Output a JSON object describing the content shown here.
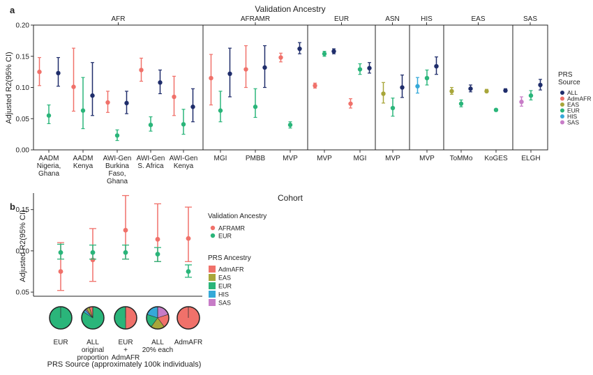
{
  "colors": {
    "ALL": "#1f2d6b",
    "AdmAFR": "#f0716a",
    "EAS": "#a8a63a",
    "EUR": "#2ab57a",
    "HIS": "#35a9d8",
    "SAS": "#c77cc7"
  },
  "chart_data": [
    {
      "type": "scatter",
      "panel_label": "a",
      "title": "Validation Ancestry",
      "ylabel": "Adjusted R2(95% CI)",
      "xlabel": "Cohort",
      "ylim": [
        0,
        0.2
      ],
      "yticks": [
        "0.00",
        "0.05",
        "0.10",
        "0.15",
        "0.20"
      ],
      "ytick_values": [
        0,
        0.05,
        0.1,
        0.15,
        0.2
      ],
      "legend": {
        "title_lines": [
          "PRS",
          "Source"
        ],
        "entries": [
          "ALL",
          "AdmAFR",
          "EAS",
          "EUR",
          "HIS",
          "SAS"
        ]
      },
      "groups": [
        {
          "name": "AFR",
          "cohorts": [
            {
              "label_lines": [
                "AADM",
                "Nigeria,",
                "Ghana"
              ],
              "points": [
                {
                  "src": "AdmAFR",
                  "y": 0.125,
                  "lo": 0.103,
                  "hi": 0.148
                },
                {
                  "src": "EUR",
                  "y": 0.055,
                  "lo": 0.042,
                  "hi": 0.072
                },
                {
                  "src": "ALL",
                  "y": 0.123,
                  "lo": 0.102,
                  "hi": 0.148
                }
              ]
            },
            {
              "label_lines": [
                "AADM",
                "Kenya"
              ],
              "points": [
                {
                  "src": "AdmAFR",
                  "y": 0.101,
                  "lo": 0.062,
                  "hi": 0.163
                },
                {
                  "src": "EUR",
                  "y": 0.063,
                  "lo": 0.034,
                  "hi": 0.116
                },
                {
                  "src": "ALL",
                  "y": 0.087,
                  "lo": 0.055,
                  "hi": 0.14
                }
              ]
            },
            {
              "label_lines": [
                "AWI-Gen",
                "Burkina",
                "Faso,",
                "Ghana"
              ],
              "points": [
                {
                  "src": "AdmAFR",
                  "y": 0.076,
                  "lo": 0.06,
                  "hi": 0.094
                },
                {
                  "src": "EUR",
                  "y": 0.023,
                  "lo": 0.015,
                  "hi": 0.032
                },
                {
                  "src": "ALL",
                  "y": 0.075,
                  "lo": 0.058,
                  "hi": 0.094
                }
              ]
            },
            {
              "label_lines": [
                "AWI-Gen",
                "S. Africa"
              ],
              "points": [
                {
                  "src": "AdmAFR",
                  "y": 0.128,
                  "lo": 0.11,
                  "hi": 0.147
                },
                {
                  "src": "EUR",
                  "y": 0.04,
                  "lo": 0.03,
                  "hi": 0.053
                },
                {
                  "src": "ALL",
                  "y": 0.108,
                  "lo": 0.09,
                  "hi": 0.128
                }
              ]
            },
            {
              "label_lines": [
                "AWI-Gen",
                "Kenya"
              ],
              "points": [
                {
                  "src": "AdmAFR",
                  "y": 0.085,
                  "lo": 0.055,
                  "hi": 0.118
                },
                {
                  "src": "EUR",
                  "y": 0.041,
                  "lo": 0.025,
                  "hi": 0.065
                },
                {
                  "src": "ALL",
                  "y": 0.069,
                  "lo": 0.045,
                  "hi": 0.098
                }
              ]
            }
          ]
        },
        {
          "name": "AFRAMR",
          "cohorts": [
            {
              "label_lines": [
                "MGI"
              ],
              "points": [
                {
                  "src": "AdmAFR",
                  "y": 0.115,
                  "lo": 0.072,
                  "hi": 0.153
                },
                {
                  "src": "EUR",
                  "y": 0.063,
                  "lo": 0.045,
                  "hi": 0.094
                },
                {
                  "src": "ALL",
                  "y": 0.122,
                  "lo": 0.085,
                  "hi": 0.163
                }
              ]
            },
            {
              "label_lines": [
                "PMBB"
              ],
              "points": [
                {
                  "src": "AdmAFR",
                  "y": 0.129,
                  "lo": 0.1,
                  "hi": 0.167
                },
                {
                  "src": "EUR",
                  "y": 0.069,
                  "lo": 0.052,
                  "hi": 0.098
                },
                {
                  "src": "ALL",
                  "y": 0.132,
                  "lo": 0.1,
                  "hi": 0.167
                }
              ]
            },
            {
              "label_lines": [
                "MVP"
              ],
              "points": [
                {
                  "src": "AdmAFR",
                  "y": 0.148,
                  "lo": 0.141,
                  "hi": 0.155
                },
                {
                  "src": "EUR",
                  "y": 0.04,
                  "lo": 0.035,
                  "hi": 0.045
                },
                {
                  "src": "ALL",
                  "y": 0.162,
                  "lo": 0.154,
                  "hi": 0.172
                }
              ]
            }
          ]
        },
        {
          "name": "EUR",
          "cohorts": [
            {
              "label_lines": [
                "MVP"
              ],
              "points": [
                {
                  "src": "AdmAFR",
                  "y": 0.103,
                  "lo": 0.099,
                  "hi": 0.107
                },
                {
                  "src": "EUR",
                  "y": 0.154,
                  "lo": 0.15,
                  "hi": 0.158
                },
                {
                  "src": "ALL",
                  "y": 0.158,
                  "lo": 0.154,
                  "hi": 0.162
                }
              ]
            },
            {
              "label_lines": [
                "MGI"
              ],
              "points": [
                {
                  "src": "AdmAFR",
                  "y": 0.074,
                  "lo": 0.067,
                  "hi": 0.082
                },
                {
                  "src": "EUR",
                  "y": 0.129,
                  "lo": 0.121,
                  "hi": 0.138
                },
                {
                  "src": "ALL",
                  "y": 0.131,
                  "lo": 0.123,
                  "hi": 0.14
                }
              ]
            }
          ]
        },
        {
          "name": "ASN",
          "cohorts": [
            {
              "label_lines": [
                "MVP"
              ],
              "points": [
                {
                  "src": "EAS",
                  "y": 0.09,
                  "lo": 0.075,
                  "hi": 0.108
                },
                {
                  "src": "EUR",
                  "y": 0.067,
                  "lo": 0.054,
                  "hi": 0.083
                },
                {
                  "src": "ALL",
                  "y": 0.1,
                  "lo": 0.084,
                  "hi": 0.12
                }
              ]
            }
          ]
        },
        {
          "name": "HIS",
          "cohorts": [
            {
              "label_lines": [
                "MVP"
              ],
              "points": [
                {
                  "src": "HIS",
                  "y": 0.102,
                  "lo": 0.091,
                  "hi": 0.116
                },
                {
                  "src": "EUR",
                  "y": 0.115,
                  "lo": 0.104,
                  "hi": 0.128
                },
                {
                  "src": "ALL",
                  "y": 0.134,
                  "lo": 0.121,
                  "hi": 0.149
                }
              ]
            }
          ]
        },
        {
          "name": "EAS",
          "cohorts": [
            {
              "label_lines": [
                "ToMMo"
              ],
              "points": [
                {
                  "src": "EAS",
                  "y": 0.094,
                  "lo": 0.089,
                  "hi": 0.1
                },
                {
                  "src": "EUR",
                  "y": 0.074,
                  "lo": 0.069,
                  "hi": 0.08
                },
                {
                  "src": "ALL",
                  "y": 0.098,
                  "lo": 0.093,
                  "hi": 0.104
                }
              ]
            },
            {
              "label_lines": [
                "KoGES"
              ],
              "points": [
                {
                  "src": "EAS",
                  "y": 0.094,
                  "lo": 0.092,
                  "hi": 0.097
                },
                {
                  "src": "EUR",
                  "y": 0.064,
                  "lo": 0.062,
                  "hi": 0.066
                },
                {
                  "src": "ALL",
                  "y": 0.095,
                  "lo": 0.093,
                  "hi": 0.098
                }
              ]
            }
          ]
        },
        {
          "name": "SAS",
          "cohorts": [
            {
              "label_lines": [
                "ELGH"
              ],
              "points": [
                {
                  "src": "SAS",
                  "y": 0.077,
                  "lo": 0.07,
                  "hi": 0.085
                },
                {
                  "src": "EUR",
                  "y": 0.087,
                  "lo": 0.08,
                  "hi": 0.095
                },
                {
                  "src": "ALL",
                  "y": 0.104,
                  "lo": 0.096,
                  "hi": 0.113
                }
              ]
            }
          ]
        }
      ]
    },
    {
      "type": "scatter",
      "panel_label": "b",
      "ylabel": "Adjusted R2(95% CI)",
      "xlabel": "PRS Source (approximately 100k individuals)",
      "ylim": [
        0.045,
        0.17
      ],
      "yticks": [
        "0.05",
        "0.10",
        "0.15"
      ],
      "ytick_values": [
        0.05,
        0.1,
        0.15
      ],
      "legend_validation": {
        "title": "Validation Ancestry",
        "entries": [
          {
            "label": "AFRAMR",
            "color": "#f0716a"
          },
          {
            "label": "EUR",
            "color": "#2ab57a"
          }
        ]
      },
      "legend_prs": {
        "title": "PRS Ancestry",
        "entries": [
          {
            "label": "AdmAFR",
            "color": "#f0716a"
          },
          {
            "label": "EAS",
            "color": "#a8a63a"
          },
          {
            "label": "EUR",
            "color": "#2ab57a"
          },
          {
            "label": "HIS",
            "color": "#35a9d8"
          },
          {
            "label": "SAS",
            "color": "#c77cc7"
          }
        ]
      },
      "sources": [
        {
          "label_lines": [
            "EUR"
          ],
          "AFRAMR": {
            "y": 0.075,
            "lo": 0.052,
            "hi": 0.11
          },
          "EUR": {
            "y": 0.098,
            "lo": 0.09,
            "hi": 0.108
          },
          "pie": [
            {
              "anc": "EUR",
              "frac": 1.0
            }
          ]
        },
        {
          "label_lines": [
            "ALL",
            "original",
            "proportion"
          ],
          "AFRAMR": {
            "y": 0.089,
            "lo": 0.063,
            "hi": 0.127
          },
          "EUR": {
            "y": 0.098,
            "lo": 0.09,
            "hi": 0.107
          },
          "pie": [
            {
              "anc": "EUR",
              "frac": 0.84
            },
            {
              "anc": "HIS",
              "frac": 0.04
            },
            {
              "anc": "SAS",
              "frac": 0.02
            },
            {
              "anc": "EAS",
              "frac": 0.05
            },
            {
              "anc": "AdmAFR",
              "frac": 0.05
            }
          ]
        },
        {
          "label_lines": [
            "EUR",
            "+",
            "AdmAFR"
          ],
          "AFRAMR": {
            "y": 0.125,
            "lo": 0.09,
            "hi": 0.167
          },
          "EUR": {
            "y": 0.098,
            "lo": 0.09,
            "hi": 0.107
          },
          "pie": [
            {
              "anc": "AdmAFR",
              "frac": 0.5
            },
            {
              "anc": "EUR",
              "frac": 0.5
            }
          ]
        },
        {
          "label_lines": [
            "ALL",
            "20% each"
          ],
          "AFRAMR": {
            "y": 0.114,
            "lo": 0.087,
            "hi": 0.157
          },
          "EUR": {
            "y": 0.096,
            "lo": 0.087,
            "hi": 0.104
          },
          "pie": [
            {
              "anc": "SAS",
              "frac": 0.2
            },
            {
              "anc": "AdmAFR",
              "frac": 0.2
            },
            {
              "anc": "EAS",
              "frac": 0.2
            },
            {
              "anc": "EUR",
              "frac": 0.2
            },
            {
              "anc": "HIS",
              "frac": 0.2
            }
          ]
        },
        {
          "label_lines": [
            "AdmAFR"
          ],
          "AFRAMR": {
            "y": 0.115,
            "lo": 0.087,
            "hi": 0.153
          },
          "EUR": {
            "y": 0.075,
            "lo": 0.068,
            "hi": 0.083
          },
          "pie": [
            {
              "anc": "AdmAFR",
              "frac": 1.0
            }
          ]
        }
      ]
    }
  ]
}
